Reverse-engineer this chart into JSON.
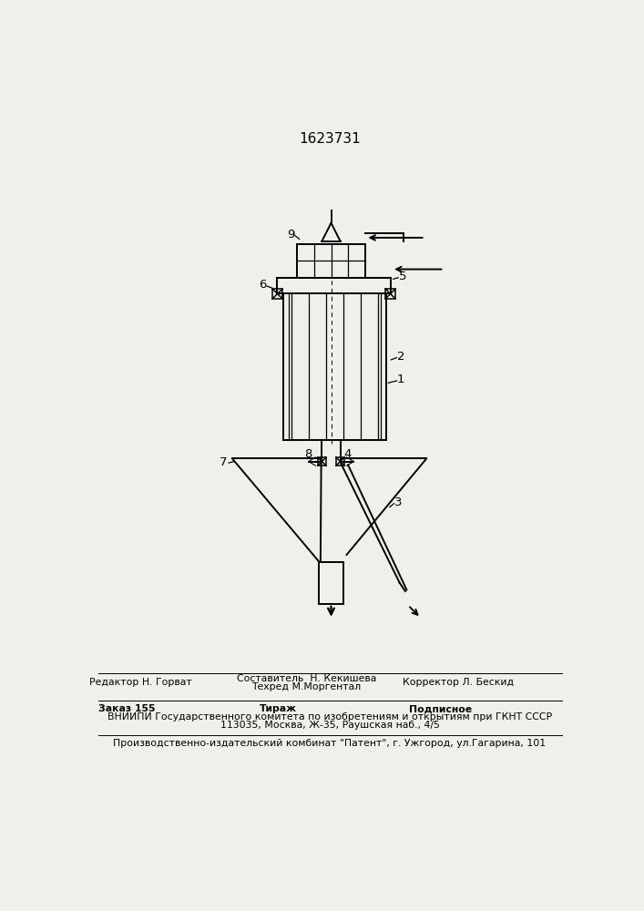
{
  "title": "1623731",
  "bg_color": "#f0f0eb",
  "lc": "#000000",
  "lw": 1.4,
  "tlw": 0.9,
  "footer": {
    "editor_label": "Редактор Н. Горват",
    "compiler_line1": "Составитель  Н. Кекишева",
    "compiler_line2": "Техред М.Моргентал",
    "corrector_label": "Корректор Л. Бескид",
    "order_label": "Заказ 155",
    "tirazh_label": "Тираж",
    "podpisnoe_label": "Подписное",
    "vniiipi_line1": "ВНИИПИ Государственного комитета по изобретениям и открытиям при ГКНТ СССР",
    "vniiipi_line2": "113035, Москва, Ж-35, Раушская наб., 4/5",
    "production_line": "Производственно-издательский комбинат \"Патент\", г. Ужгород, ул.Гагарина, 101"
  }
}
